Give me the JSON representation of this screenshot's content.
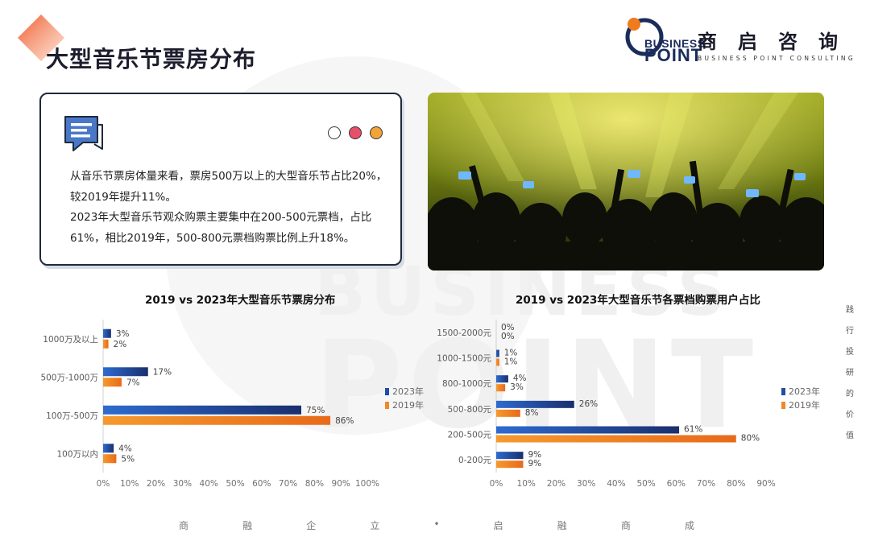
{
  "page": {
    "title": "大型音乐节票房分布"
  },
  "logo": {
    "business": "BUSINESS",
    "point": "POINT",
    "cn_name": "商启咨询",
    "en_name": "BUSINESS POINT CONSULTING"
  },
  "watermark": {
    "line1": "BUSINESS",
    "line2": "POINT"
  },
  "card": {
    "paragraphs": [
      "从音乐节票房体量来看，票房500万以上的大型音乐节占比20%，较2019年提升11%。",
      "2023年大型音乐节观众购票主要集中在200-500元票档，占比61%，相比2019年，500-800元票档购票比例上升18%。"
    ],
    "dot_colors": [
      "#ffffff",
      "#e8506a",
      "#f2a436"
    ]
  },
  "colors": {
    "series_2023": "#1f4ea3",
    "series_2019": "#f08a24",
    "accent": "#e8533a"
  },
  "chart_data": [
    {
      "type": "bar",
      "orientation": "horizontal",
      "title": "2019 vs 2023年大型音乐节票房分布",
      "categories": [
        "1000万及以上",
        "500万-1000万",
        "100万-500万",
        "100万以内"
      ],
      "series": [
        {
          "name": "2023年",
          "values": [
            3,
            17,
            75,
            4
          ]
        },
        {
          "name": "2019年",
          "values": [
            2,
            7,
            86,
            5
          ]
        }
      ],
      "xlim": [
        0,
        100
      ],
      "xticks": [
        "0%",
        "10%",
        "20%",
        "30%",
        "40%",
        "50%",
        "60%",
        "70%",
        "80%",
        "90%",
        "100%"
      ],
      "legend": "right"
    },
    {
      "type": "bar",
      "orientation": "horizontal",
      "title": "2019 vs 2023年大型音乐节各票档购票用户占比",
      "categories": [
        "1500-2000元",
        "1000-1500元",
        "800-1000元",
        "500-800元",
        "200-500元",
        "0-200元"
      ],
      "series": [
        {
          "name": "2023年",
          "values": [
            0,
            1,
            4,
            26,
            61,
            9
          ]
        },
        {
          "name": "2019年",
          "values": [
            0,
            1,
            3,
            8,
            80,
            9
          ]
        }
      ],
      "xlim": [
        0,
        90
      ],
      "xticks": [
        "0%",
        "10%",
        "20%",
        "30%",
        "40%",
        "50%",
        "60%",
        "70%",
        "80%",
        "90%"
      ],
      "legend": "right"
    }
  ],
  "side_text": [
    "践",
    "行",
    "投",
    "研",
    "的",
    "价",
    "值"
  ],
  "footer": [
    "商",
    "融",
    "企",
    "立",
    "•",
    "启",
    "融",
    "商",
    "成"
  ]
}
